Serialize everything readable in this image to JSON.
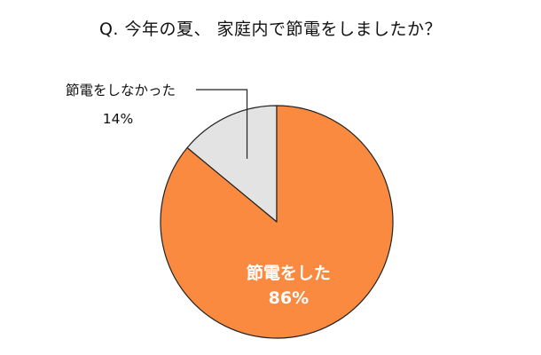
{
  "title": "Q. 今年の夏、 家庭内で節電をしましたか？",
  "chart_data": {
    "type": "pie",
    "slices": [
      {
        "label": "節電をしなかった",
        "value": 14,
        "value_label": "14%",
        "color": "#e3e3e3"
      },
      {
        "label": "節電をした",
        "value": 86,
        "value_label": "86%",
        "color": "#f98a3f"
      }
    ],
    "start_angle": "12 o'clock",
    "direction": "counterclockwise",
    "legend": "none",
    "label_placement": {
      "節電をしなかった": "outside-left with leader line",
      "節電をした": "inside"
    }
  }
}
